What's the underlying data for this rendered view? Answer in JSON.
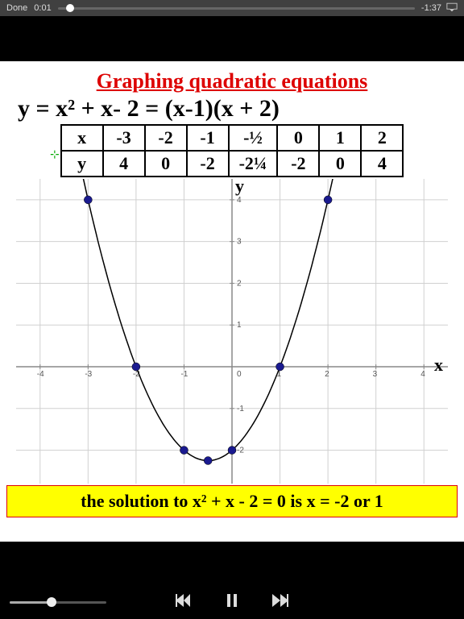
{
  "status": {
    "done": "Done",
    "elapsed": "0:01",
    "remaining": "-1:37"
  },
  "content": {
    "title": "Graphing quadratic equations",
    "equation": "y = x² + x- 2 = (x-1)(x + 2)",
    "table": {
      "row_labels": [
        "x",
        "y"
      ],
      "x_values": [
        "-3",
        "-2",
        "-1",
        "-½",
        "0",
        "1",
        "2"
      ],
      "y_values": [
        "4",
        "0",
        "-2",
        "-2¼",
        "-2",
        "0",
        "4"
      ]
    },
    "solution": "the solution to x² + x - 2 = 0  is x = -2 or 1"
  },
  "chart": {
    "type": "line",
    "x_range": [
      -4.5,
      4.5
    ],
    "y_range": [
      -2.8,
      4.5
    ],
    "x_ticks": [
      -4,
      -3,
      -2,
      -1,
      0,
      1,
      2,
      3,
      4
    ],
    "y_ticks": [
      1,
      2,
      3,
      4
    ],
    "y_neg_ticks": [
      -1,
      -2
    ],
    "y_axis_label": "y",
    "x_axis_label": "x",
    "grid_color": "#d0d0d0",
    "axis_color": "#888888",
    "curve_color": "#000000",
    "point_color": "#1a1a8f",
    "points": [
      {
        "x": -3,
        "y": 4
      },
      {
        "x": -2,
        "y": 0
      },
      {
        "x": -1,
        "y": -2
      },
      {
        "x": -0.5,
        "y": -2.25
      },
      {
        "x": 0,
        "y": -2
      },
      {
        "x": 1,
        "y": 0
      },
      {
        "x": 2,
        "y": 4
      }
    ],
    "background_color": "#ffffff",
    "tick_font_size": 10
  },
  "player": {
    "volume_pct": 40
  }
}
